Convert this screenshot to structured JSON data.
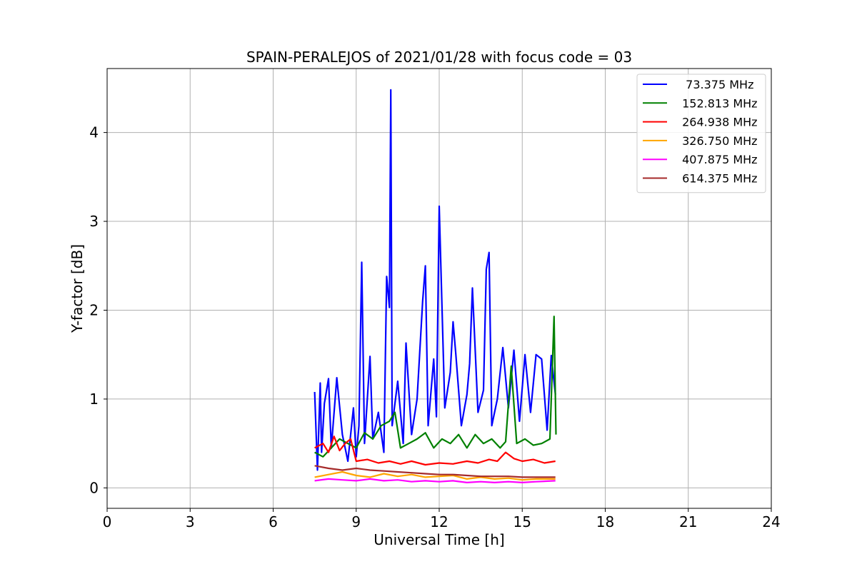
{
  "chart_data": {
    "type": "line",
    "title": "SPAIN-PERALEJOS of 2021/01/28 with focus code = 03",
    "xlabel": "Universal Time [h]",
    "ylabel": "Y-factor [dB]",
    "xlim": [
      0,
      24
    ],
    "ylim": [
      -0.23,
      4.72
    ],
    "xticks": [
      0,
      3,
      6,
      9,
      12,
      15,
      18,
      21,
      24
    ],
    "xtick_labels": [
      "0",
      "3",
      "6",
      "9",
      "12",
      "15",
      "18",
      "21",
      "24"
    ],
    "yticks": [
      0,
      1,
      2,
      3,
      4
    ],
    "ytick_labels": [
      "0",
      "1",
      "2",
      "3",
      "4"
    ],
    "grid": true,
    "legend_position": "top-right",
    "series": [
      {
        "name": "  73.375 MHz",
        "color": "#0000ff",
        "x": [
          7.5,
          7.6,
          7.7,
          7.75,
          7.85,
          8.0,
          8.1,
          8.3,
          8.5,
          8.7,
          8.9,
          9.0,
          9.1,
          9.2,
          9.3,
          9.5,
          9.6,
          9.8,
          10.0,
          10.1,
          10.2,
          10.25,
          10.3,
          10.4,
          10.5,
          10.7,
          10.8,
          11.0,
          11.2,
          11.4,
          11.5,
          11.6,
          11.8,
          11.9,
          12.0,
          12.2,
          12.4,
          12.5,
          12.6,
          12.8,
          13.0,
          13.1,
          13.2,
          13.4,
          13.6,
          13.7,
          13.8,
          13.9,
          14.1,
          14.3,
          14.5,
          14.7,
          14.9,
          15.1,
          15.3,
          15.5,
          15.7,
          15.9,
          16.05,
          16.2
        ],
        "y": [
          1.08,
          0.2,
          1.18,
          0.4,
          0.95,
          1.23,
          0.45,
          1.24,
          0.6,
          0.3,
          0.9,
          0.35,
          0.7,
          2.54,
          0.5,
          1.48,
          0.55,
          0.85,
          0.4,
          2.38,
          2.03,
          4.48,
          0.7,
          0.95,
          1.2,
          0.5,
          1.63,
          0.6,
          1.0,
          2.1,
          2.5,
          0.7,
          1.45,
          0.8,
          3.17,
          0.9,
          1.3,
          1.87,
          1.5,
          0.7,
          1.05,
          1.4,
          2.25,
          0.85,
          1.1,
          2.46,
          2.65,
          0.7,
          1.0,
          1.58,
          0.9,
          1.55,
          0.75,
          1.5,
          0.85,
          1.5,
          1.45,
          0.65,
          1.49,
          1.05
        ]
      },
      {
        "name": " 152.813 MHz",
        "color": "#008000",
        "x": [
          7.5,
          7.8,
          8.1,
          8.4,
          8.7,
          9.0,
          9.3,
          9.6,
          9.9,
          10.2,
          10.4,
          10.6,
          10.9,
          11.2,
          11.5,
          11.8,
          12.1,
          12.4,
          12.7,
          13.0,
          13.3,
          13.6,
          13.9,
          14.2,
          14.4,
          14.6,
          14.8,
          15.1,
          15.4,
          15.7,
          16.0,
          16.15,
          16.22
        ],
        "y": [
          0.4,
          0.35,
          0.45,
          0.55,
          0.5,
          0.45,
          0.62,
          0.55,
          0.7,
          0.75,
          0.85,
          0.45,
          0.5,
          0.55,
          0.62,
          0.45,
          0.55,
          0.5,
          0.6,
          0.45,
          0.6,
          0.5,
          0.55,
          0.45,
          0.52,
          1.37,
          0.5,
          0.55,
          0.48,
          0.5,
          0.55,
          1.93,
          0.6
        ]
      },
      {
        "name": " 264.938 MHz",
        "color": "#ff0000",
        "x": [
          7.5,
          7.8,
          8.0,
          8.2,
          8.4,
          8.6,
          8.8,
          9.0,
          9.4,
          9.8,
          10.2,
          10.6,
          11.0,
          11.5,
          12.0,
          12.5,
          13.0,
          13.4,
          13.8,
          14.1,
          14.4,
          14.7,
          15.0,
          15.4,
          15.8,
          16.2
        ],
        "y": [
          0.45,
          0.5,
          0.4,
          0.58,
          0.42,
          0.5,
          0.55,
          0.3,
          0.32,
          0.28,
          0.3,
          0.27,
          0.3,
          0.26,
          0.28,
          0.27,
          0.3,
          0.28,
          0.32,
          0.3,
          0.4,
          0.33,
          0.3,
          0.32,
          0.28,
          0.3
        ]
      },
      {
        "name": " 326.750 MHz",
        "color": "#ffa500",
        "x": [
          7.5,
          8.0,
          8.5,
          9.0,
          9.5,
          10.0,
          10.5,
          11.0,
          11.5,
          12.0,
          12.5,
          13.0,
          13.5,
          14.0,
          14.5,
          15.0,
          15.5,
          16.2
        ],
        "y": [
          0.12,
          0.15,
          0.18,
          0.14,
          0.12,
          0.16,
          0.13,
          0.15,
          0.12,
          0.13,
          0.14,
          0.1,
          0.12,
          0.1,
          0.11,
          0.09,
          0.1,
          0.1
        ]
      },
      {
        "name": " 407.875 MHz",
        "color": "#ff00ff",
        "x": [
          7.5,
          8.0,
          8.5,
          9.0,
          9.5,
          10.0,
          10.5,
          11.0,
          11.5,
          12.0,
          12.5,
          13.0,
          13.5,
          14.0,
          14.5,
          15.0,
          15.5,
          16.2
        ],
        "y": [
          0.08,
          0.1,
          0.09,
          0.08,
          0.1,
          0.08,
          0.09,
          0.07,
          0.08,
          0.07,
          0.08,
          0.06,
          0.07,
          0.06,
          0.07,
          0.06,
          0.07,
          0.08
        ]
      },
      {
        "name": " 614.375 MHz",
        "color": "#a52a2a",
        "x": [
          7.5,
          8.0,
          8.5,
          9.0,
          9.5,
          10.0,
          10.5,
          11.0,
          11.5,
          12.0,
          12.5,
          13.0,
          13.5,
          14.0,
          14.5,
          15.0,
          15.5,
          16.2
        ],
        "y": [
          0.25,
          0.22,
          0.2,
          0.22,
          0.2,
          0.19,
          0.18,
          0.17,
          0.16,
          0.15,
          0.15,
          0.14,
          0.13,
          0.13,
          0.13,
          0.12,
          0.12,
          0.12
        ]
      }
    ]
  }
}
